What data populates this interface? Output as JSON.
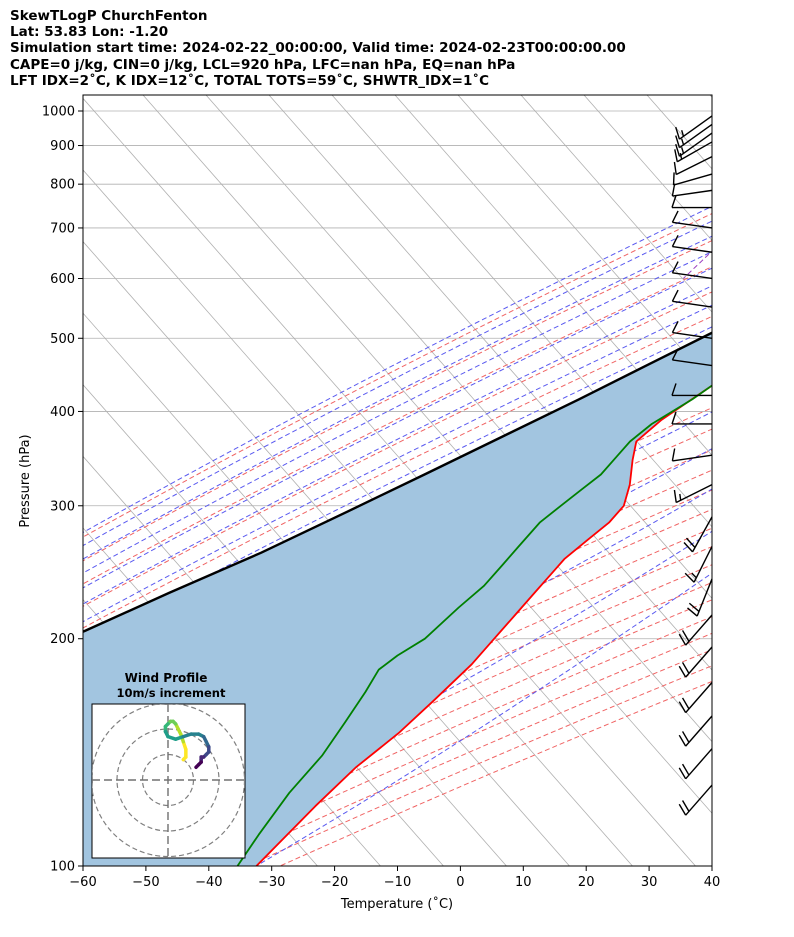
{
  "header": {
    "line1": "SkewTLogP ChurchFenton",
    "line2": "Lat: 53.83   Lon: -1.20",
    "line3": "Simulation start time: 2024-02-22_00:00:00, Valid time: 2024-02-23T00:00:00.00",
    "line4": "CAPE=0 j/kg, CIN=0 j/kg, LCL=920 hPa, LFC=nan hPa, EQ=nan hPa",
    "line5": "LFT IDX=2˚C, K IDX=12˚C, TOTAL TOTS=59˚C, SHWTR_IDX=1˚C"
  },
  "chart_data": [
    {
      "type": "line",
      "kind": "skew-t log-p",
      "xlabel": "Temperature (˚C)",
      "ylabel": "Pressure (hPa)",
      "xlim": [
        -60,
        40
      ],
      "ylim": [
        1050,
        100
      ],
      "y_scale": "log",
      "x_ticks": [
        -60,
        -50,
        -40,
        -30,
        -20,
        -10,
        0,
        10,
        20,
        30,
        40
      ],
      "x_tick_labels": [
        "−60",
        "−50",
        "−40",
        "−30",
        "−20",
        "−10",
        "0",
        "10",
        "20",
        "30",
        "40"
      ],
      "y_ticks": [
        100,
        200,
        300,
        400,
        500,
        600,
        700,
        800,
        900,
        1000
      ],
      "y_tick_labels": [
        "100",
        "200",
        "300",
        "400",
        "500",
        "600",
        "700",
        "800",
        "900",
        "1000"
      ],
      "grid": true,
      "colors": {
        "temperature": "#ff0000",
        "dewpoint": "#008000",
        "parcel": "#000000",
        "fill": "#a2c5e0",
        "dry_adiabat": "#f06464",
        "moist_adiabat": "#5a5af0",
        "mixing_ratio": "#9b3fbf",
        "isotherm": "#b0b0b0"
      },
      "series": [
        {
          "role": "temperature",
          "points": [
            [
              6,
              975
            ],
            [
              4,
              930
            ],
            [
              2,
              880
            ],
            [
              0,
              830
            ],
            [
              -3,
              780
            ],
            [
              -6,
              730
            ],
            [
              -9,
              690
            ],
            [
              -12,
              650
            ],
            [
              -15,
              605
            ],
            [
              -18,
              560
            ],
            [
              -21,
              515
            ],
            [
              -24,
              470
            ],
            [
              -27,
              430
            ],
            [
              -30,
              390
            ],
            [
              -31,
              365
            ],
            [
              -29,
              345
            ],
            [
              -26,
              320
            ],
            [
              -24,
              300
            ],
            [
              -24,
              285
            ],
            [
              -25,
              270
            ],
            [
              -26,
              255
            ],
            [
              -26,
              245
            ],
            [
              -26,
              230
            ],
            [
              -26,
              215
            ],
            [
              -26,
              200
            ],
            [
              -26,
              185
            ],
            [
              -27,
              165
            ],
            [
              -28,
              150
            ],
            [
              -30,
              135
            ],
            [
              -31,
              120
            ],
            [
              -32,
              100
            ]
          ]
        },
        {
          "role": "dewpoint",
          "points": [
            [
              2,
              960
            ],
            [
              2,
              940
            ],
            [
              0,
              900
            ],
            [
              -3,
              860
            ],
            [
              -9,
              800
            ],
            [
              -14,
              750
            ],
            [
              -18,
              710
            ],
            [
              -21,
              670
            ],
            [
              -23,
              630
            ],
            [
              -24,
              590
            ],
            [
              -25,
              550
            ],
            [
              -25,
              510
            ],
            [
              -26,
              475
            ],
            [
              -26,
              445
            ],
            [
              -28,
              415
            ],
            [
              -31,
              385
            ],
            [
              -32,
              365
            ],
            [
              -32,
              350
            ],
            [
              -32,
              330
            ],
            [
              -33,
              315
            ],
            [
              -34,
              300
            ],
            [
              -35,
              285
            ],
            [
              -35,
              265
            ],
            [
              -35,
              250
            ],
            [
              -35,
              235
            ],
            [
              -36,
              220
            ],
            [
              -37,
              200
            ],
            [
              -39,
              190
            ],
            [
              -40,
              182
            ],
            [
              -39,
              170
            ],
            [
              -38,
              155
            ],
            [
              -37,
              140
            ],
            [
              -37,
              125
            ],
            [
              -36,
              110
            ],
            [
              -35,
              100
            ]
          ]
        },
        {
          "role": "parcel",
          "points": [
            [
              6,
              975
            ],
            [
              2.5,
              920
            ],
            [
              0,
              870
            ],
            [
              -3,
              820
            ],
            [
              -7,
              770
            ],
            [
              -12,
              720
            ],
            [
              -16,
              680
            ],
            [
              -22,
              620
            ],
            [
              -28,
              560
            ],
            [
              -34,
              510
            ],
            [
              -40,
              460
            ],
            [
              -46,
              415
            ],
            [
              -53,
              370
            ],
            [
              -60,
              330
            ],
            [
              -67,
              295
            ],
            [
              -75,
              260
            ],
            [
              -84,
              230
            ],
            [
              -92,
              205
            ],
            [
              -101,
              180
            ],
            [
              -110,
              160
            ],
            [
              -119,
              140
            ],
            [
              -127,
              125
            ],
            [
              -135,
              110
            ],
            [
              -141,
              100
            ]
          ]
        }
      ],
      "wind_barbs": [
        {
          "p": 985,
          "u": 7,
          "v": 5
        },
        {
          "p": 960,
          "u": 7,
          "v": 5
        },
        {
          "p": 935,
          "u": 7,
          "v": 5
        },
        {
          "p": 910,
          "u": 7,
          "v": 4
        },
        {
          "p": 870,
          "u": 6,
          "v": 3
        },
        {
          "p": 825,
          "u": 7,
          "v": 2
        },
        {
          "p": 785,
          "u": 7,
          "v": 1
        },
        {
          "p": 745,
          "u": 7,
          "v": 0
        },
        {
          "p": 700,
          "u": 7,
          "v": -1
        },
        {
          "p": 650,
          "u": 7,
          "v": -1
        },
        {
          "p": 600,
          "u": 7,
          "v": -1
        },
        {
          "p": 550,
          "u": 7,
          "v": -1
        },
        {
          "p": 500,
          "u": 7,
          "v": -1
        },
        {
          "p": 460,
          "u": 7,
          "v": -1
        },
        {
          "p": 420,
          "u": 7,
          "v": 0
        },
        {
          "p": 385,
          "u": 7,
          "v": 0
        },
        {
          "p": 350,
          "u": 7,
          "v": 1
        },
        {
          "p": 320,
          "u": 8,
          "v": 4
        },
        {
          "p": 290,
          "u": 5,
          "v": 9
        },
        {
          "p": 265,
          "u": 4,
          "v": 8
        },
        {
          "p": 240,
          "u": 4,
          "v": 10
        },
        {
          "p": 215,
          "u": 7,
          "v": 8
        },
        {
          "p": 195,
          "u": 7,
          "v": 8
        },
        {
          "p": 175,
          "u": 7,
          "v": 8
        },
        {
          "p": 158,
          "u": 7,
          "v": 8
        },
        {
          "p": 143,
          "u": 7,
          "v": 8
        },
        {
          "p": 128,
          "u": 7,
          "v": 8
        }
      ]
    },
    {
      "type": "line",
      "kind": "hodograph",
      "title": "Wind Profile",
      "subtitle": "10m/s increment",
      "rings": [
        10,
        20,
        30
      ],
      "colormap": "viridis",
      "points": [
        [
          6,
          8
        ],
        [
          7,
          9
        ],
        [
          7,
          12
        ],
        [
          6,
          15
        ],
        [
          5,
          18
        ],
        [
          4,
          20
        ],
        [
          3,
          22
        ],
        [
          2,
          23
        ],
        [
          1,
          23
        ],
        [
          0,
          22
        ],
        [
          -1,
          21
        ],
        [
          -1,
          19
        ],
        [
          0,
          17
        ],
        [
          3,
          16
        ],
        [
          6,
          17
        ],
        [
          9,
          18
        ],
        [
          12,
          18
        ],
        [
          14,
          17
        ],
        [
          15,
          15
        ],
        [
          16,
          13
        ],
        [
          16,
          11
        ],
        [
          15,
          10
        ],
        [
          14,
          9
        ],
        [
          13,
          9
        ],
        [
          13,
          8
        ],
        [
          13,
          7
        ],
        [
          12,
          6
        ],
        [
          11,
          5
        ]
      ]
    }
  ]
}
